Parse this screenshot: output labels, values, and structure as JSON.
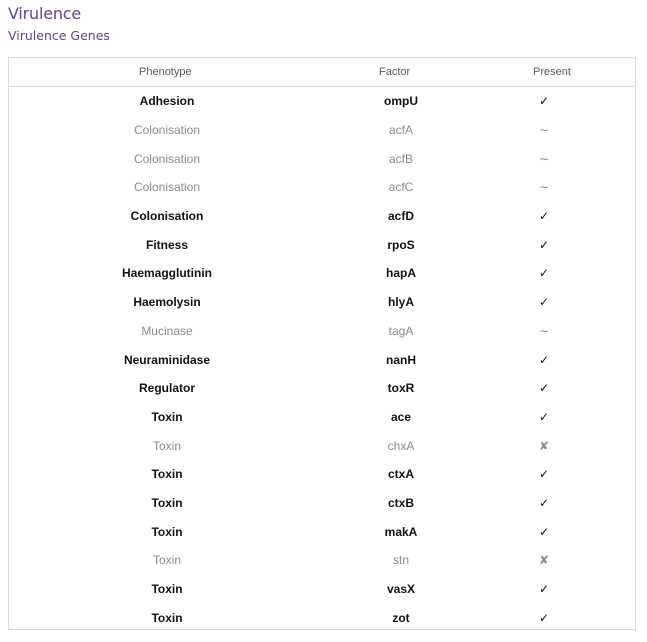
{
  "title": "Virulence",
  "subtitle": "Virulence Genes",
  "columns": {
    "phenotype": "Phenotype",
    "factor": "Factor",
    "present": "Present"
  },
  "rows": [
    {
      "phenotype": "Adhesion",
      "factor": "ompU",
      "present": "✓",
      "status": "present"
    },
    {
      "phenotype": "Colonisation",
      "factor": "acfA",
      "present": "∼",
      "status": "partial"
    },
    {
      "phenotype": "Colonisation",
      "factor": "acfB",
      "present": "∼",
      "status": "partial"
    },
    {
      "phenotype": "Colonisation",
      "factor": "acfC",
      "present": "∼",
      "status": "partial"
    },
    {
      "phenotype": "Colonisation",
      "factor": "acfD",
      "present": "✓",
      "status": "present"
    },
    {
      "phenotype": "Fitness",
      "factor": "rpoS",
      "present": "✓",
      "status": "present"
    },
    {
      "phenotype": "Haemagglutinin",
      "factor": "hapA",
      "present": "✓",
      "status": "present"
    },
    {
      "phenotype": "Haemolysin",
      "factor": "hlyA",
      "present": "✓",
      "status": "present"
    },
    {
      "phenotype": "Mucinase",
      "factor": "tagA",
      "present": "∼",
      "status": "partial"
    },
    {
      "phenotype": "Neuraminidase",
      "factor": "nanH",
      "present": "✓",
      "status": "present"
    },
    {
      "phenotype": "Regulator",
      "factor": "toxR",
      "present": "✓",
      "status": "present"
    },
    {
      "phenotype": "Toxin",
      "factor": "ace",
      "present": "✓",
      "status": "present"
    },
    {
      "phenotype": "Toxin",
      "factor": "chxA",
      "present": "✘",
      "status": "absent"
    },
    {
      "phenotype": "Toxin",
      "factor": "ctxA",
      "present": "✓",
      "status": "present"
    },
    {
      "phenotype": "Toxin",
      "factor": "ctxB",
      "present": "✓",
      "status": "present"
    },
    {
      "phenotype": "Toxin",
      "factor": "makA",
      "present": "✓",
      "status": "present"
    },
    {
      "phenotype": "Toxin",
      "factor": "stn",
      "present": "✘",
      "status": "absent"
    },
    {
      "phenotype": "Toxin",
      "factor": "vasX",
      "present": "✓",
      "status": "present"
    },
    {
      "phenotype": "Toxin",
      "factor": "zot",
      "present": "✓",
      "status": "present"
    }
  ]
}
